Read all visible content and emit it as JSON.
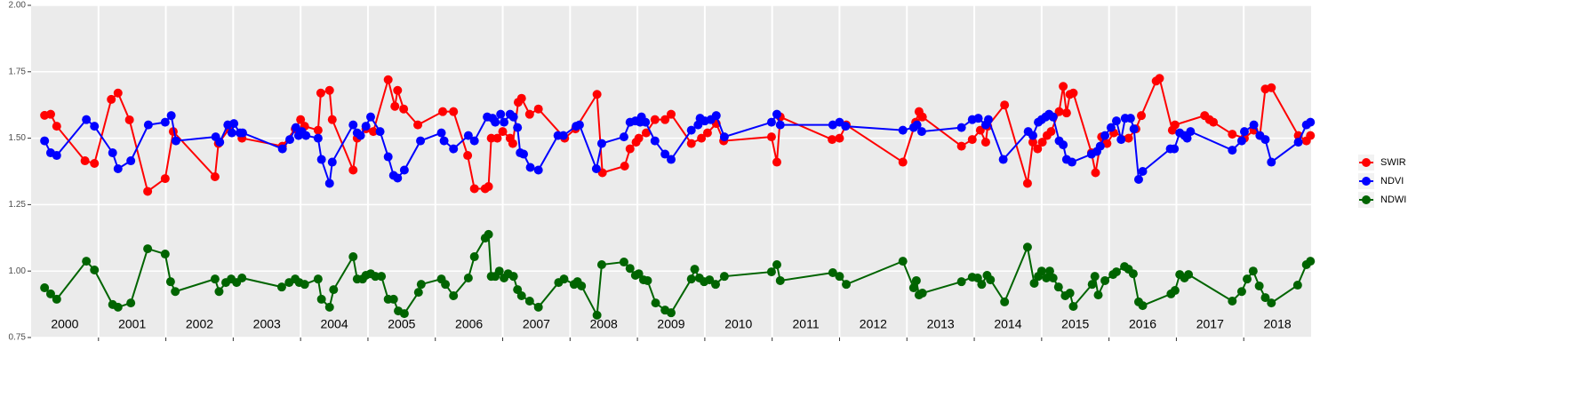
{
  "chart_data": {
    "type": "line",
    "xlim": [
      2000,
      2019
    ],
    "ylim": [
      0.75,
      2
    ],
    "yticks": [
      0.75,
      {
        "value": 1,
        "label": "1.00"
      },
      1.25,
      {
        "value": 1.5,
        "label": "1.50"
      },
      1.75,
      {
        "value": 2,
        "label": "2.00"
      }
    ],
    "xticks": [
      2001,
      2002,
      2003,
      2004,
      2005,
      2006,
      2007,
      2008,
      2009,
      2010,
      2011,
      2012,
      2013,
      2014,
      2015,
      2016,
      2017,
      2018
    ],
    "grid": true,
    "legend": "right",
    "annotations": [
      {
        "x": 2000.5,
        "text": "2000"
      },
      {
        "x": 2001.5,
        "text": "2001"
      },
      {
        "x": 2002.5,
        "text": "2002"
      },
      {
        "x": 2003.5,
        "text": "2003"
      },
      {
        "x": 2004.5,
        "text": "2004"
      },
      {
        "x": 2005.5,
        "text": "2005"
      },
      {
        "x": 2006.5,
        "text": "2006"
      },
      {
        "x": 2007.5,
        "text": "2007"
      },
      {
        "x": 2008.5,
        "text": "2008"
      },
      {
        "x": 2009.5,
        "text": "2009"
      },
      {
        "x": 2010.5,
        "text": "2010"
      },
      {
        "x": 2011.5,
        "text": "2011"
      },
      {
        "x": 2012.5,
        "text": "2012"
      },
      {
        "x": 2013.5,
        "text": "2013"
      },
      {
        "x": 2014.5,
        "text": "2014"
      },
      {
        "x": 2015.5,
        "text": "2015"
      },
      {
        "x": 2016.5,
        "text": "2016"
      },
      {
        "x": 2017.5,
        "text": "2017"
      },
      {
        "x": 2018.5,
        "text": "2018"
      }
    ],
    "series": [
      {
        "name": "SWIR",
        "color": "#ff0000",
        "x": [
          2000.2,
          2000.29,
          2000.38,
          2000.8,
          2000.94,
          2001.19,
          2001.29,
          2001.46,
          2001.73,
          2001.99,
          2002.11,
          2002.73,
          2002.78,
          2002.94,
          2003.13,
          2003.73,
          2003.92,
          2004.0,
          2004.06,
          2004.26,
          2004.3,
          2004.43,
          2004.47,
          2004.78,
          2004.84,
          2004.97,
          2005.08,
          2005.3,
          2005.4,
          2005.44,
          2005.53,
          2005.74,
          2006.11,
          2006.27,
          2006.48,
          2006.58,
          2006.74,
          2006.79,
          2006.83,
          2006.92,
          2007.0,
          2007.11,
          2007.15,
          2007.23,
          2007.28,
          2007.4,
          2007.53,
          2007.92,
          2008.08,
          2008.4,
          2008.48,
          2008.81,
          2008.89,
          2008.98,
          2009.02,
          2009.13,
          2009.26,
          2009.41,
          2009.5,
          2009.8,
          2009.95,
          2010.04,
          2010.17,
          2010.28,
          2010.99,
          2011.07,
          2011.12,
          2011.89,
          2012.0,
          2012.1,
          2012.94,
          2013.13,
          2013.18,
          2013.23,
          2013.81,
          2013.97,
          2014.09,
          2014.17,
          2014.2,
          2014.45,
          2014.79,
          2014.87,
          2014.94,
          2015.01,
          2015.08,
          2015.14,
          2015.26,
          2015.32,
          2015.37,
          2015.42,
          2015.47,
          2015.74,
          2015.8,
          2015.89,
          2015.97,
          2016.07,
          2016.29,
          2016.4,
          2016.48,
          2016.7,
          2016.75,
          2016.94,
          2016.98,
          2017.42,
          2017.49,
          2017.55,
          2017.83,
          2018.01,
          2018.15,
          2018.24,
          2018.32,
          2018.41,
          2018.81,
          2018.93,
          2018.99
        ],
        "values": [
          1.586,
          1.59,
          1.545,
          1.415,
          1.405,
          1.646,
          1.67,
          1.569,
          1.3,
          1.348,
          1.525,
          1.355,
          1.48,
          1.535,
          1.5,
          1.47,
          1.535,
          1.57,
          1.545,
          1.53,
          1.67,
          1.68,
          1.57,
          1.38,
          1.5,
          1.535,
          1.525,
          1.72,
          1.62,
          1.68,
          1.61,
          1.55,
          1.6,
          1.6,
          1.435,
          1.31,
          1.31,
          1.318,
          1.5,
          1.5,
          1.525,
          1.5,
          1.48,
          1.635,
          1.65,
          1.59,
          1.61,
          1.5,
          1.535,
          1.665,
          1.37,
          1.395,
          1.46,
          1.485,
          1.5,
          1.52,
          1.57,
          1.57,
          1.59,
          1.48,
          1.5,
          1.52,
          1.555,
          1.49,
          1.505,
          1.41,
          1.58,
          1.495,
          1.5,
          1.55,
          1.41,
          1.56,
          1.6,
          1.58,
          1.47,
          1.495,
          1.53,
          1.485,
          1.545,
          1.625,
          1.33,
          1.485,
          1.46,
          1.485,
          1.51,
          1.525,
          1.6,
          1.695,
          1.595,
          1.665,
          1.67,
          1.445,
          1.37,
          1.505,
          1.48,
          1.52,
          1.5,
          1.535,
          1.585,
          1.715,
          1.725,
          1.53,
          1.55,
          1.585,
          1.57,
          1.56,
          1.515,
          1.5,
          1.53,
          1.51,
          1.685,
          1.69,
          1.51,
          1.49,
          1.51
        ]
      },
      {
        "name": "NDVI",
        "color": "#0000ff",
        "x": [
          2000.2,
          2000.29,
          2000.38,
          2000.82,
          2000.94,
          2001.21,
          2001.29,
          2001.48,
          2001.74,
          2001.99,
          2002.08,
          2002.15,
          2002.74,
          2002.8,
          2002.92,
          2002.98,
          2003.01,
          2003.1,
          2003.14,
          2003.73,
          2003.84,
          2003.93,
          2003.97,
          2004.02,
          2004.08,
          2004.26,
          2004.31,
          2004.43,
          2004.47,
          2004.78,
          2004.84,
          2004.89,
          2004.97,
          2005.04,
          2005.18,
          2005.3,
          2005.38,
          2005.44,
          2005.54,
          2005.78,
          2006.09,
          2006.13,
          2006.27,
          2006.49,
          2006.58,
          2006.77,
          2006.85,
          2006.89,
          2006.97,
          2007.02,
          2007.11,
          2007.16,
          2007.22,
          2007.26,
          2007.31,
          2007.41,
          2007.53,
          2007.82,
          2007.9,
          2008.09,
          2008.14,
          2008.39,
          2008.47,
          2008.8,
          2008.89,
          2008.97,
          2009.04,
          2009.06,
          2009.12,
          2009.26,
          2009.41,
          2009.5,
          2009.8,
          2009.9,
          2009.93,
          2010.0,
          2010.09,
          2010.17,
          2010.29,
          2010.99,
          2011.07,
          2011.12,
          2011.9,
          2012.0,
          2012.09,
          2012.94,
          2013.1,
          2013.15,
          2013.22,
          2013.81,
          2013.97,
          2014.06,
          2014.17,
          2014.21,
          2014.43,
          2014.8,
          2014.87,
          2014.95,
          2015.0,
          2015.06,
          2015.11,
          2015.17,
          2015.26,
          2015.32,
          2015.37,
          2015.45,
          2015.74,
          2015.82,
          2015.87,
          2015.94,
          2016.03,
          2016.11,
          2016.18,
          2016.24,
          2016.32,
          2016.37,
          2016.44,
          2016.5,
          2016.91,
          2016.97,
          2017.05,
          2017.12,
          2017.16,
          2017.21,
          2017.83,
          2017.97,
          2018.01,
          2018.15,
          2018.24,
          2018.32,
          2018.41,
          2018.81,
          2018.93,
          2018.99
        ],
        "values": [
          1.49,
          1.445,
          1.435,
          1.57,
          1.545,
          1.445,
          1.385,
          1.415,
          1.55,
          1.56,
          1.585,
          1.49,
          1.505,
          1.485,
          1.55,
          1.52,
          1.555,
          1.52,
          1.52,
          1.46,
          1.495,
          1.54,
          1.51,
          1.525,
          1.51,
          1.5,
          1.42,
          1.33,
          1.41,
          1.55,
          1.52,
          1.51,
          1.545,
          1.58,
          1.525,
          1.43,
          1.36,
          1.35,
          1.38,
          1.49,
          1.52,
          1.49,
          1.46,
          1.51,
          1.49,
          1.58,
          1.575,
          1.56,
          1.59,
          1.56,
          1.59,
          1.58,
          1.54,
          1.445,
          1.44,
          1.39,
          1.38,
          1.51,
          1.51,
          1.545,
          1.55,
          1.385,
          1.48,
          1.505,
          1.56,
          1.565,
          1.56,
          1.58,
          1.56,
          1.49,
          1.44,
          1.42,
          1.53,
          1.55,
          1.575,
          1.565,
          1.57,
          1.585,
          1.505,
          1.56,
          1.59,
          1.55,
          1.55,
          1.56,
          1.545,
          1.53,
          1.54,
          1.55,
          1.525,
          1.54,
          1.57,
          1.575,
          1.55,
          1.57,
          1.42,
          1.525,
          1.51,
          1.56,
          1.57,
          1.58,
          1.59,
          1.58,
          1.49,
          1.475,
          1.42,
          1.41,
          1.44,
          1.45,
          1.47,
          1.51,
          1.54,
          1.565,
          1.495,
          1.575,
          1.575,
          1.535,
          1.345,
          1.375,
          1.46,
          1.46,
          1.52,
          1.51,
          1.5,
          1.525,
          1.455,
          1.49,
          1.525,
          1.55,
          1.51,
          1.495,
          1.41,
          1.485,
          1.55,
          1.56
        ]
      },
      {
        "name": "NDWI",
        "color": "#006400",
        "x": [
          2000.2,
          2000.29,
          2000.38,
          2000.82,
          2000.94,
          2001.21,
          2001.29,
          2001.48,
          2001.73,
          2001.99,
          2002.07,
          2002.14,
          2002.73,
          2002.79,
          2002.89,
          2002.97,
          2003.05,
          2003.13,
          2003.72,
          2003.83,
          2003.92,
          2003.98,
          2004.06,
          2004.26,
          2004.31,
          2004.43,
          2004.49,
          2004.78,
          2004.84,
          2004.92,
          2004.97,
          2005.04,
          2005.11,
          2005.2,
          2005.3,
          2005.38,
          2005.45,
          2005.54,
          2005.75,
          2005.79,
          2006.09,
          2006.15,
          2006.27,
          2006.49,
          2006.58,
          2006.74,
          2006.79,
          2006.83,
          2006.89,
          2006.95,
          2007.02,
          2007.08,
          2007.16,
          2007.22,
          2007.28,
          2007.4,
          2007.53,
          2007.83,
          2007.91,
          2008.06,
          2008.11,
          2008.17,
          2008.4,
          2008.47,
          2008.8,
          2008.89,
          2008.97,
          2009.02,
          2009.09,
          2009.15,
          2009.27,
          2009.41,
          2009.5,
          2009.8,
          2009.85,
          2009.92,
          2009.99,
          2010.07,
          2010.16,
          2010.29,
          2010.99,
          2011.07,
          2011.12,
          2011.9,
          2012.0,
          2012.1,
          2012.94,
          2013.1,
          2013.14,
          2013.18,
          2013.23,
          2013.81,
          2013.97,
          2014.05,
          2014.11,
          2014.19,
          2014.24,
          2014.45,
          2014.79,
          2014.89,
          2014.95,
          2015.0,
          2015.07,
          2015.12,
          2015.17,
          2015.25,
          2015.35,
          2015.42,
          2015.47,
          2015.75,
          2015.79,
          2015.84,
          2015.94,
          2016.06,
          2016.11,
          2016.23,
          2016.29,
          2016.36,
          2016.44,
          2016.5,
          2016.92,
          2016.98,
          2017.05,
          2017.12,
          2017.18,
          2017.83,
          2017.97,
          2018.05,
          2018.14,
          2018.23,
          2018.32,
          2018.41,
          2018.8,
          2018.93,
          2018.99
        ],
        "values": [
          0.937,
          0.914,
          0.894,
          1.037,
          1.004,
          0.874,
          0.864,
          0.88,
          1.084,
          1.064,
          0.96,
          0.923,
          0.97,
          0.923,
          0.957,
          0.97,
          0.957,
          0.974,
          0.94,
          0.957,
          0.97,
          0.957,
          0.95,
          0.97,
          0.894,
          0.864,
          0.93,
          1.054,
          0.97,
          0.97,
          0.984,
          0.99,
          0.98,
          0.98,
          0.894,
          0.894,
          0.85,
          0.84,
          0.92,
          0.95,
          0.97,
          0.95,
          0.907,
          0.974,
          1.054,
          1.124,
          1.138,
          0.98,
          0.98,
          1.0,
          0.974,
          0.99,
          0.98,
          0.93,
          0.907,
          0.887,
          0.864,
          0.957,
          0.97,
          0.95,
          0.96,
          0.944,
          0.834,
          1.024,
          1.034,
          1.01,
          0.984,
          0.99,
          0.967,
          0.964,
          0.88,
          0.853,
          0.843,
          0.97,
          1.007,
          0.974,
          0.96,
          0.967,
          0.95,
          0.98,
          0.997,
          1.024,
          0.964,
          0.994,
          0.98,
          0.95,
          1.037,
          0.937,
          0.964,
          0.91,
          0.917,
          0.96,
          0.977,
          0.974,
          0.95,
          0.984,
          0.967,
          0.884,
          1.09,
          0.954,
          0.98,
          1.0,
          0.974,
          1.0,
          0.974,
          0.94,
          0.907,
          0.917,
          0.867,
          0.95,
          0.98,
          0.91,
          0.964,
          0.987,
          0.997,
          1.017,
          1.007,
          0.99,
          0.884,
          0.87,
          0.914,
          0.927,
          0.987,
          0.974,
          0.987,
          0.887,
          0.923,
          0.97,
          1.0,
          0.944,
          0.9,
          0.88,
          0.947,
          1.024,
          1.037
        ]
      }
    ]
  }
}
